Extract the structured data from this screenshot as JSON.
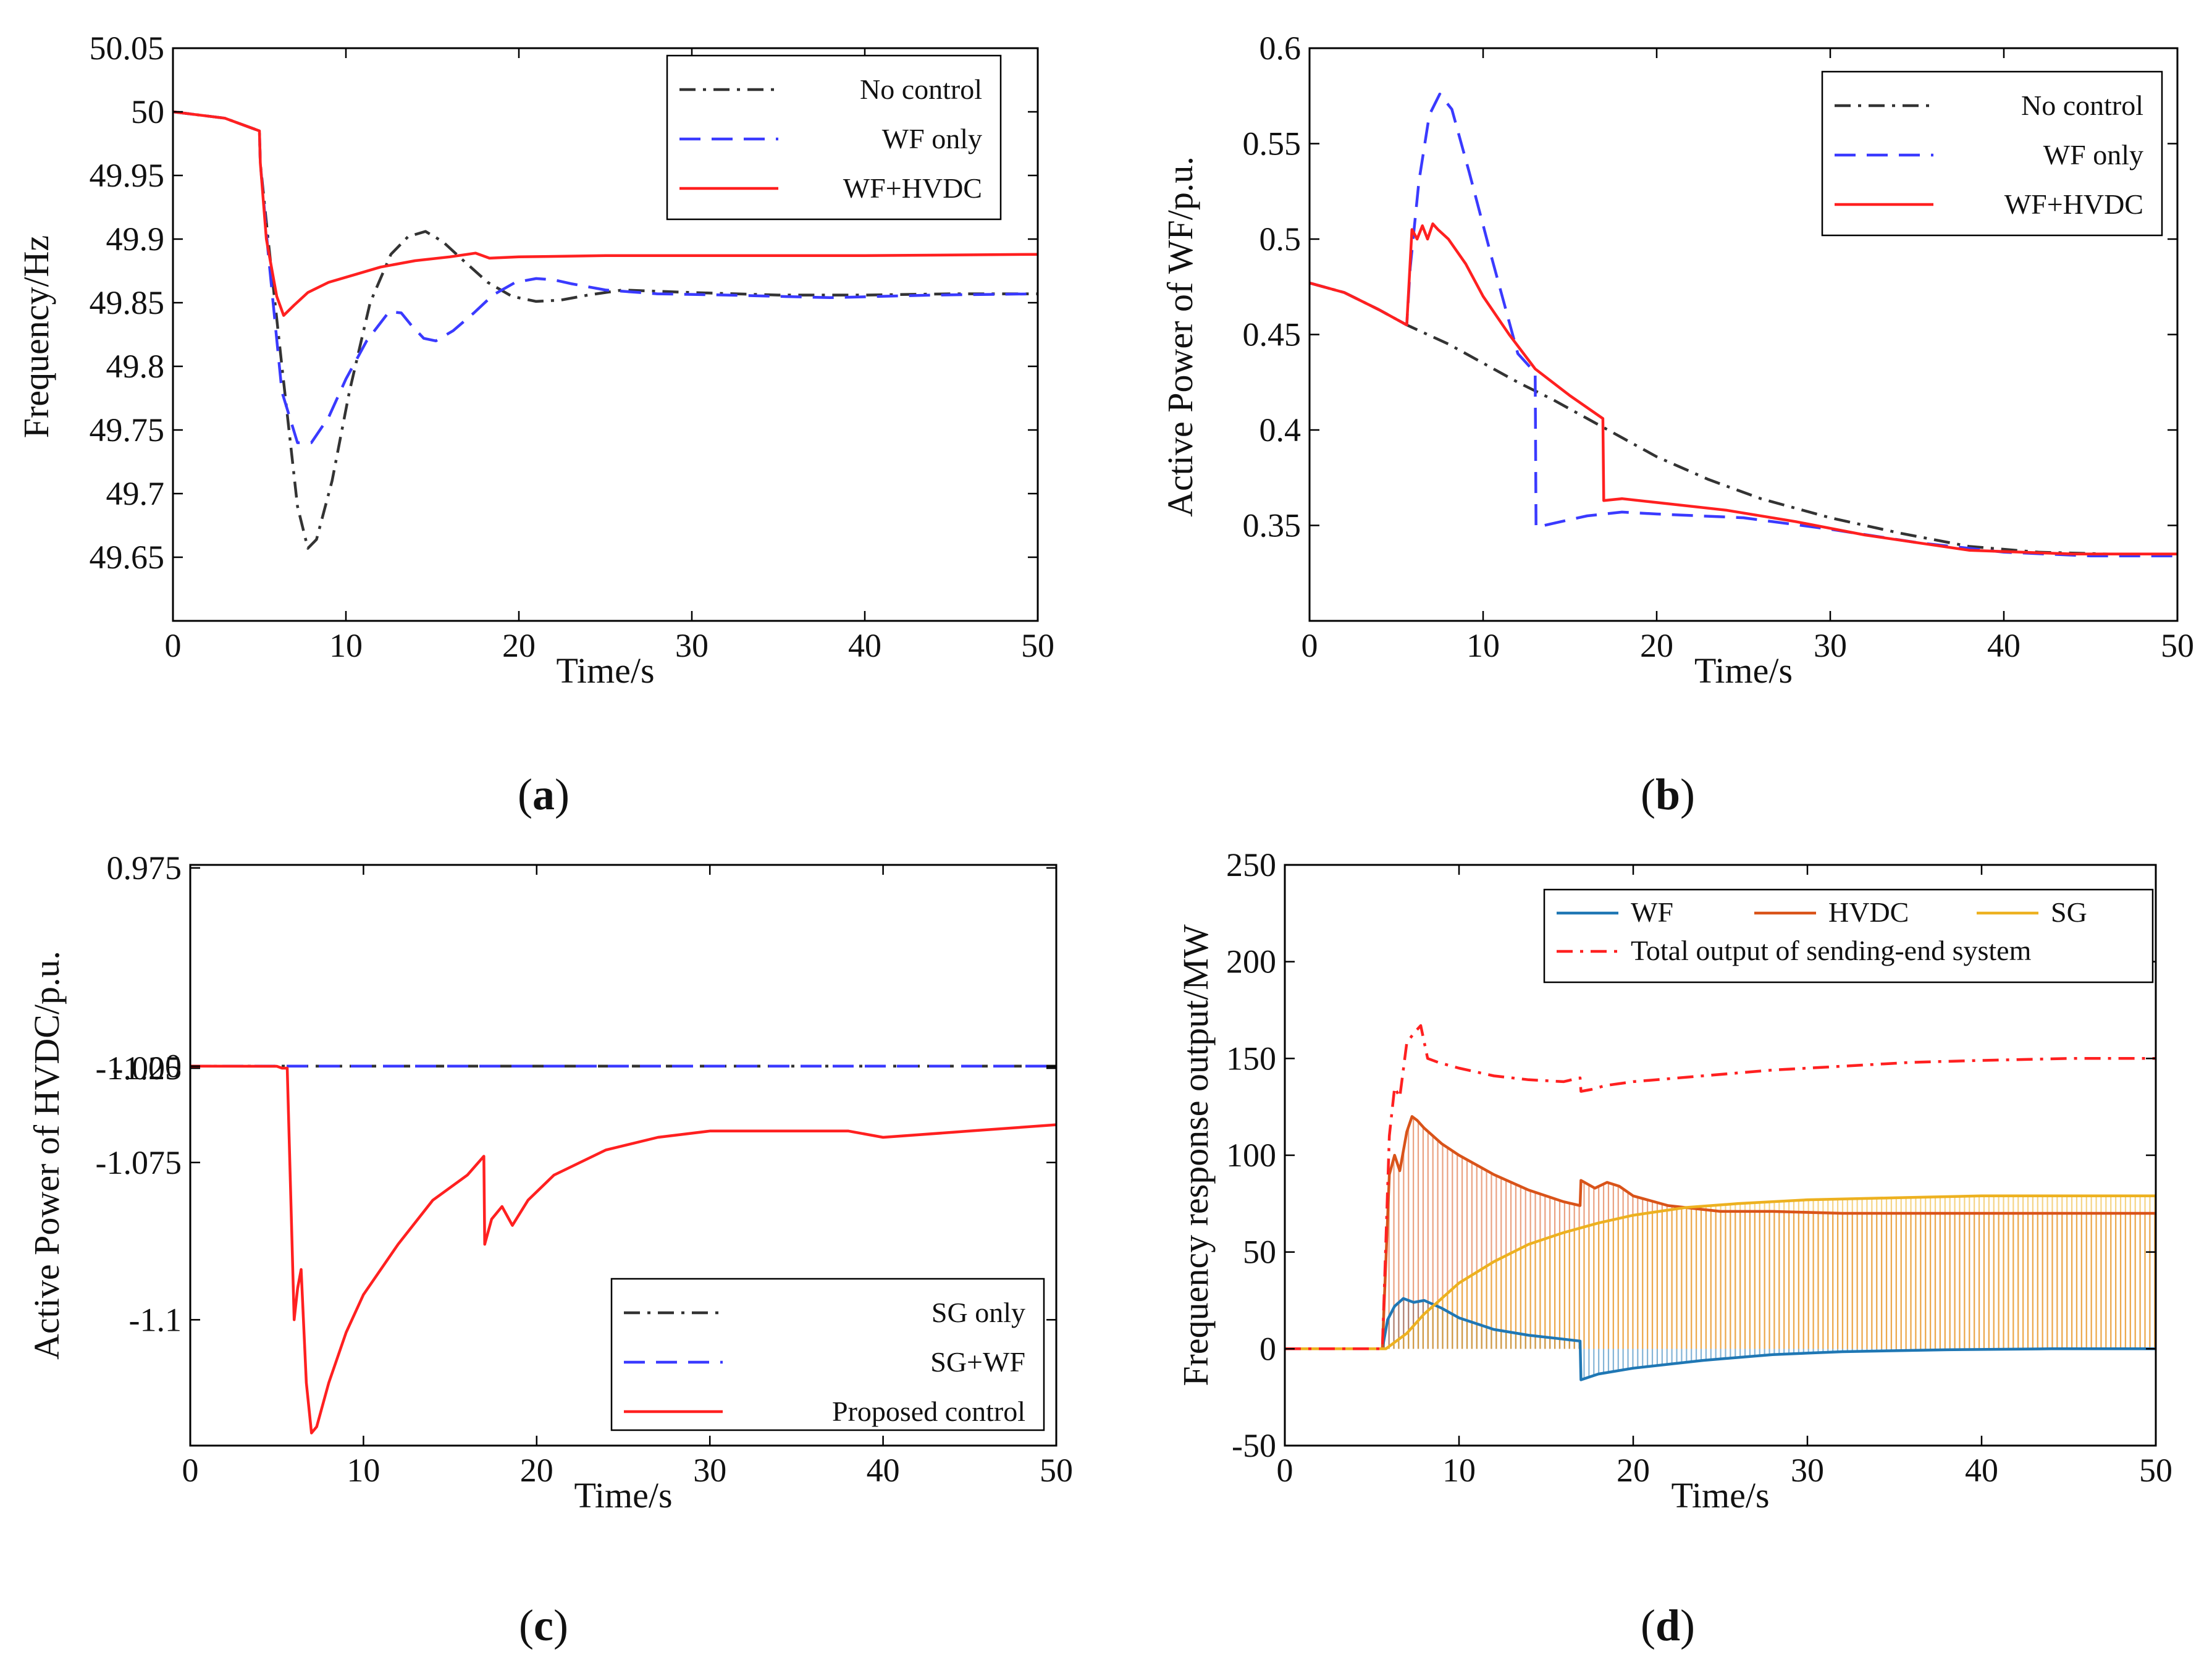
{
  "chart_data": [
    {
      "id": "a",
      "type": "line",
      "caption": "a",
      "xlabel": "Time/s",
      "ylabel": "Frequency/Hz",
      "xlim": [
        0,
        50
      ],
      "ylim": [
        49.6,
        50.05
      ],
      "xticks": [
        "0",
        "10",
        "20",
        "30",
        "40",
        "50"
      ],
      "xtick_values": [
        0,
        10,
        20,
        30,
        40,
        50
      ],
      "yticks": [
        "49.65",
        "49.7",
        "49.75",
        "49.8",
        "49.85",
        "49.9",
        "49.95",
        "50",
        "50.05"
      ],
      "ytick_values": [
        49.65,
        49.7,
        49.75,
        49.8,
        49.85,
        49.9,
        49.95,
        50,
        50.05
      ],
      "legend_position": "top-right",
      "series": [
        {
          "name": "No control",
          "color": "#333333",
          "dash": "dashdot",
          "x": [
            0,
            3,
            5,
            5.05,
            5.5,
            6.3,
            7.2,
            7.8,
            8.3,
            9.2,
            10.2,
            11.4,
            12.6,
            13.6,
            14.6,
            15.6,
            16.8,
            18.2,
            19.6,
            21.0,
            22.4,
            24,
            26,
            30,
            35,
            40,
            45,
            50
          ],
          "y": [
            50,
            49.995,
            49.985,
            49.96,
            49.9,
            49.8,
            49.69,
            49.657,
            49.664,
            49.71,
            49.78,
            49.85,
            49.888,
            49.902,
            49.906,
            49.898,
            49.883,
            49.866,
            49.855,
            49.851,
            49.852,
            49.856,
            49.86,
            49.858,
            49.856,
            49.856,
            49.857,
            49.857
          ]
        },
        {
          "name": "WF only",
          "color": "#3a3aff",
          "dash": "dash",
          "x": [
            0,
            3,
            5,
            5.05,
            5.5,
            6.3,
            7.2,
            8.0,
            9.0,
            10.0,
            11.2,
            12.5,
            13.2,
            13.8,
            14.5,
            15.2,
            16.2,
            17.4,
            18.5,
            19.8,
            21.0,
            22.0,
            23.0,
            25,
            28,
            32,
            38,
            44,
            50
          ],
          "y": [
            50,
            49.995,
            49.985,
            49.96,
            49.89,
            49.78,
            49.74,
            49.74,
            49.76,
            49.79,
            49.82,
            49.843,
            49.842,
            49.832,
            49.822,
            49.82,
            49.828,
            49.842,
            49.856,
            49.866,
            49.869,
            49.868,
            49.865,
            49.86,
            49.857,
            49.856,
            49.854,
            49.856,
            49.857
          ]
        },
        {
          "name": "WF+HVDC",
          "color": "#ff2020",
          "dash": "solid",
          "x": [
            0,
            3,
            5,
            5.05,
            5.4,
            6.0,
            6.4,
            7.0,
            7.8,
            9.0,
            10.5,
            12.0,
            14.0,
            16.0,
            17.5,
            18.3,
            20,
            25,
            30,
            40,
            50
          ],
          "y": [
            50,
            49.995,
            49.985,
            49.96,
            49.9,
            49.855,
            49.84,
            49.848,
            49.858,
            49.866,
            49.872,
            49.878,
            49.883,
            49.886,
            49.889,
            49.885,
            49.886,
            49.887,
            49.887,
            49.887,
            49.888
          ]
        }
      ]
    },
    {
      "id": "b",
      "type": "line",
      "caption": "b",
      "xlabel": "Time/s",
      "ylabel": "Active Power of WF/p.u.",
      "xlim": [
        0,
        50
      ],
      "ylim": [
        0.3,
        0.6
      ],
      "xticks": [
        "0",
        "10",
        "20",
        "30",
        "40",
        "50"
      ],
      "xtick_values": [
        0,
        10,
        20,
        30,
        40,
        50
      ],
      "yticks": [
        "0.35",
        "0.4",
        "0.45",
        "0.5",
        "0.55",
        "0.6"
      ],
      "ytick_values": [
        0.35,
        0.4,
        0.45,
        0.5,
        0.55,
        0.6
      ],
      "legend_position": "top-right",
      "series": [
        {
          "name": "No control",
          "color": "#333333",
          "dash": "dashdot",
          "x": [
            0,
            2,
            4,
            5.6,
            8,
            10,
            12,
            14,
            16,
            18,
            20,
            23,
            26,
            30,
            34,
            38,
            42,
            46,
            50
          ],
          "y": [
            0.477,
            0.472,
            0.463,
            0.455,
            0.445,
            0.435,
            0.425,
            0.416,
            0.406,
            0.396,
            0.386,
            0.374,
            0.364,
            0.354,
            0.346,
            0.339,
            0.336,
            0.335,
            0.335
          ]
        },
        {
          "name": "WF only",
          "color": "#3a3aff",
          "dash": "dash",
          "x": [
            0,
            2,
            4,
            5.6,
            5.8,
            6.3,
            6.9,
            7.5,
            8.2,
            9.2,
            10.5,
            12.0,
            13.0,
            13.05,
            14,
            16,
            18,
            20,
            25,
            30,
            35,
            40,
            45,
            50
          ],
          "y": [
            0.477,
            0.472,
            0.463,
            0.455,
            0.485,
            0.53,
            0.565,
            0.576,
            0.568,
            0.535,
            0.49,
            0.44,
            0.43,
            0.349,
            0.351,
            0.355,
            0.357,
            0.356,
            0.354,
            0.348,
            0.341,
            0.336,
            0.334,
            0.334
          ]
        },
        {
          "name": "WF+HVDC",
          "color": "#ff2020",
          "dash": "solid",
          "x": [
            0,
            2,
            4,
            5.6,
            5.9,
            6.2,
            6.5,
            6.8,
            7.1,
            7.4,
            8.0,
            9.0,
            10.0,
            11.5,
            13.0,
            15.0,
            16.9,
            16.95,
            18,
            20,
            24,
            28,
            32,
            38,
            44,
            50
          ],
          "y": [
            0.477,
            0.472,
            0.463,
            0.455,
            0.505,
            0.5,
            0.507,
            0.5,
            0.508,
            0.505,
            0.5,
            0.487,
            0.47,
            0.45,
            0.432,
            0.418,
            0.406,
            0.363,
            0.364,
            0.362,
            0.358,
            0.352,
            0.345,
            0.337,
            0.335,
            0.335
          ]
        }
      ]
    },
    {
      "id": "c",
      "type": "line",
      "caption": "c",
      "xlabel": "Time/s",
      "ylabel": "Active Power of HVDC/p.u.",
      "xlim": [
        0,
        50
      ],
      "ylim": [
        -1.12,
        0.99
      ],
      "y_break": {
        "from": -1.06,
        "to": -0.01,
        "screen_fraction": 0.35
      },
      "xticks": [
        "0",
        "10",
        "20",
        "30",
        "40",
        "50"
      ],
      "xtick_values": [
        0,
        10,
        20,
        30,
        40,
        50
      ],
      "yticks": [
        "0.975",
        "0",
        "-1.025",
        "-1.05",
        "-1.075",
        "-1.1"
      ],
      "ytick_values": [
        0.975,
        0,
        -1.025,
        -1.05,
        -1.075,
        -1.1
      ],
      "legend_position": "bottom-right",
      "series": [
        {
          "name": "SG only",
          "color": "#333333",
          "dash": "dashdot",
          "x": [
            0,
            50
          ],
          "y": [
            0,
            0
          ]
        },
        {
          "name": "SG+WF",
          "color": "#3a3aff",
          "dash": "dash",
          "x": [
            0,
            50
          ],
          "y": [
            0,
            0
          ]
        },
        {
          "name": "Proposed control",
          "color": "#ff2020",
          "dash": "solid",
          "x": [
            0,
            5.0,
            5.3,
            5.6,
            6.0,
            6.2,
            6.4,
            6.7,
            7.0,
            7.3,
            8.0,
            9.0,
            10.0,
            12.0,
            14.0,
            16.0,
            16.95,
            17.0,
            17.4,
            18.0,
            18.6,
            19.5,
            21,
            24,
            27,
            30,
            34,
            38,
            40,
            45,
            50
          ],
          "y": [
            0,
            -0.001,
            -0.02,
            -1.05,
            -1.1,
            -1.095,
            -1.092,
            -1.11,
            -1.118,
            -1.117,
            -1.11,
            -1.102,
            -1.096,
            -1.088,
            -1.081,
            -1.077,
            -1.074,
            -1.088,
            -1.084,
            -1.082,
            -1.085,
            -1.081,
            -1.077,
            -1.073,
            -1.071,
            -1.07,
            -1.07,
            -1.07,
            -1.071,
            -1.07,
            -1.069
          ]
        }
      ]
    },
    {
      "id": "d",
      "type": "line",
      "caption": "d",
      "xlabel": "Time/s",
      "ylabel": "Frequency response output/MW",
      "xlim": [
        0,
        50
      ],
      "ylim": [
        -50,
        250
      ],
      "xticks": [
        "0",
        "10",
        "20",
        "30",
        "40",
        "50"
      ],
      "xtick_values": [
        0,
        10,
        20,
        30,
        40,
        50
      ],
      "yticks": [
        "-50",
        "0",
        "50",
        "100",
        "150",
        "200",
        "250"
      ],
      "ytick_values": [
        -50,
        0,
        50,
        100,
        150,
        200,
        250
      ],
      "legend_position": "top-right",
      "series": [
        {
          "name": "WF",
          "color": "#1f77b4",
          "dash": "solid",
          "fill": true,
          "x": [
            0,
            5.6,
            5.9,
            6.3,
            6.8,
            7.4,
            8.0,
            9.0,
            10.0,
            12.0,
            14.0,
            16.0,
            16.95,
            17.0,
            18.0,
            20.0,
            24.0,
            28.0,
            32.0,
            38.0,
            44.0,
            50.0
          ],
          "y": [
            0,
            0,
            15,
            22,
            26,
            24,
            25,
            21,
            16,
            10,
            7,
            5,
            4,
            -16,
            -13,
            -10,
            -6,
            -3,
            -1.5,
            -0.5,
            0,
            0
          ]
        },
        {
          "name": "HVDC",
          "color": "#d95319",
          "dash": "solid",
          "fill": true,
          "x": [
            0,
            5.6,
            6.0,
            6.3,
            6.6,
            7.0,
            7.3,
            7.6,
            8.0,
            9.0,
            10.0,
            12.0,
            14.0,
            16.0,
            16.95,
            17.0,
            17.8,
            18.5,
            19.2,
            20.0,
            22.0,
            25.0,
            28.0,
            32.0,
            38.0,
            44.0,
            50.0
          ],
          "y": [
            0,
            0,
            90,
            100,
            92,
            112,
            120,
            118,
            114,
            106,
            100,
            90,
            82,
            76,
            74,
            87,
            83,
            86,
            84,
            79,
            74,
            71,
            71,
            70,
            70,
            70,
            70
          ]
        },
        {
          "name": "SG",
          "color": "#edb120",
          "dash": "solid",
          "fill": true,
          "x": [
            0,
            5.8,
            7.0,
            8.0,
            9.0,
            10.0,
            12.0,
            14.0,
            16.0,
            18.0,
            20.0,
            23.0,
            26.0,
            30.0,
            35.0,
            40.0,
            45.0,
            50.0
          ],
          "y": [
            0,
            0,
            8,
            18,
            26,
            34,
            45,
            54,
            60,
            65,
            69,
            73,
            75,
            77,
            78,
            79,
            79,
            79
          ]
        },
        {
          "name": "Total output of sending-end system",
          "color": "#ff2020",
          "dash": "dashdot",
          "fill": false,
          "x": [
            0,
            5.6,
            6.0,
            6.3,
            6.6,
            7.0,
            7.4,
            7.8,
            8.2,
            8.8,
            10.0,
            12.0,
            14.0,
            16.0,
            16.95,
            17.0,
            17.6,
            18.4,
            20.0,
            24.0,
            28.0,
            32.0,
            36.0,
            40.0,
            45.0,
            50.0
          ],
          "y": [
            0,
            0,
            110,
            135,
            130,
            158,
            163,
            167,
            150,
            148,
            145,
            141,
            139,
            138,
            140,
            133,
            134,
            136,
            138,
            141,
            144,
            146,
            148,
            149,
            150,
            150
          ]
        }
      ]
    }
  ]
}
